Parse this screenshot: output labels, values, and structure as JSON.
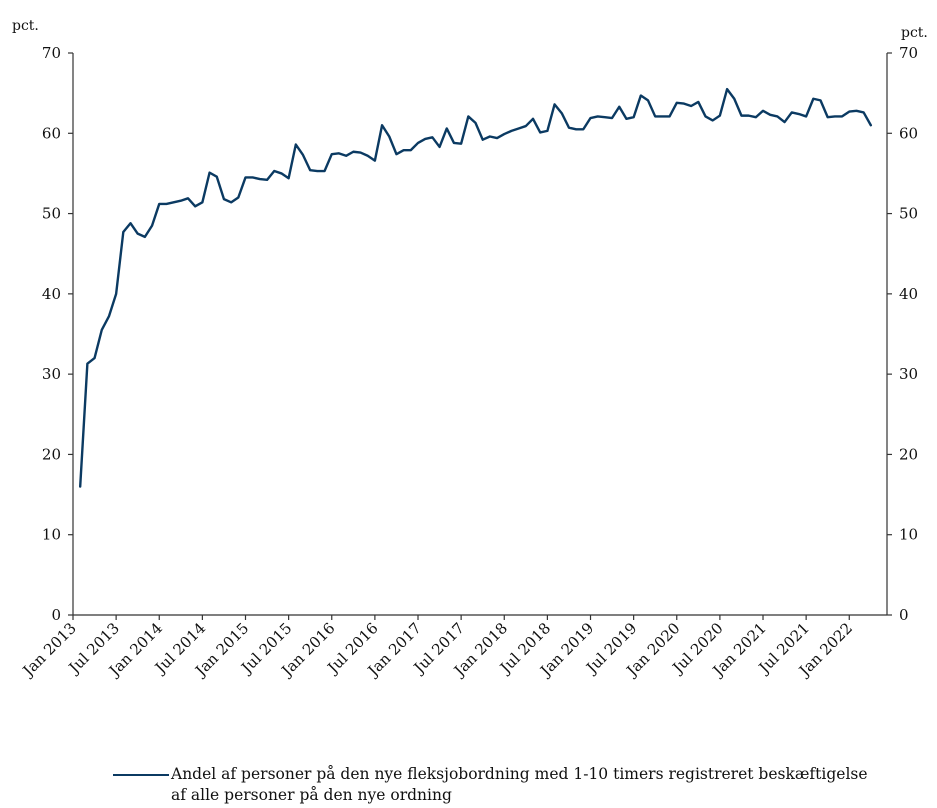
{
  "chart_data": {
    "type": "line",
    "ylabel_left": "pct.",
    "ylabel_right": "pct.",
    "ylim": [
      0,
      70
    ],
    "yticks": [
      0,
      10,
      20,
      30,
      40,
      50,
      60,
      70
    ],
    "xtick_labels": [
      "Jan 2013",
      "Jul 2013",
      "Jan 2014",
      "Jul 2014",
      "Jan 2015",
      "Jul 2015",
      "Jan 2016",
      "Jul 2016",
      "Jan 2017",
      "Jul 2017",
      "Jan 2018",
      "Jul 2018",
      "Jan 2019",
      "Jul 2019",
      "Jan 2020",
      "Jul 2020",
      "Jan 2021",
      "Jul 2021",
      "Jan 2022"
    ],
    "x_start": "2013-02",
    "x_end": "2022-06",
    "grid": false,
    "legend_position": "bottom",
    "line_color": "#0b3a62",
    "series": [
      {
        "name": "Andel af personer på den nye fleksjobordning med 1-10 timers registreret beskæftigelse af alle personer på den nye ordning",
        "values": [
          16.0,
          31.3,
          32.0,
          35.5,
          37.2,
          40.0,
          47.7,
          48.8,
          47.5,
          47.1,
          48.5,
          51.2,
          51.2,
          51.4,
          51.6,
          51.9,
          50.9,
          51.4,
          55.1,
          54.6,
          51.8,
          51.4,
          52.0,
          54.5,
          54.5,
          54.3,
          54.2,
          55.3,
          55.0,
          54.4,
          58.6,
          57.3,
          55.4,
          55.3,
          55.3,
          57.4,
          57.5,
          57.2,
          57.7,
          57.6,
          57.2,
          56.6,
          61.0,
          59.6,
          57.4,
          57.9,
          57.9,
          58.8,
          59.3,
          59.5,
          58.3,
          60.6,
          58.8,
          58.7,
          62.1,
          61.3,
          59.2,
          59.6,
          59.4,
          59.9,
          60.3,
          60.6,
          60.9,
          61.8,
          60.1,
          60.3,
          63.6,
          62.5,
          60.7,
          60.5,
          60.5,
          61.9,
          62.1,
          62.0,
          61.9,
          63.3,
          61.8,
          62.0,
          64.7,
          64.1,
          62.1,
          62.1,
          62.1,
          63.8,
          63.7,
          63.4,
          63.9,
          62.1,
          61.6,
          62.2,
          65.5,
          64.3,
          62.2,
          62.2,
          62.0,
          62.8,
          62.3,
          62.1,
          61.4,
          62.6,
          62.4,
          62.1,
          64.3,
          64.1,
          62.0,
          62.1,
          62.1,
          62.7,
          62.8,
          62.6,
          61.0
        ]
      }
    ]
  },
  "legend": {
    "label": "Andel af personer på den nye fleksjobordning med 1-10 timers registreret beskæftigelse af alle personer på den nye ordning"
  }
}
